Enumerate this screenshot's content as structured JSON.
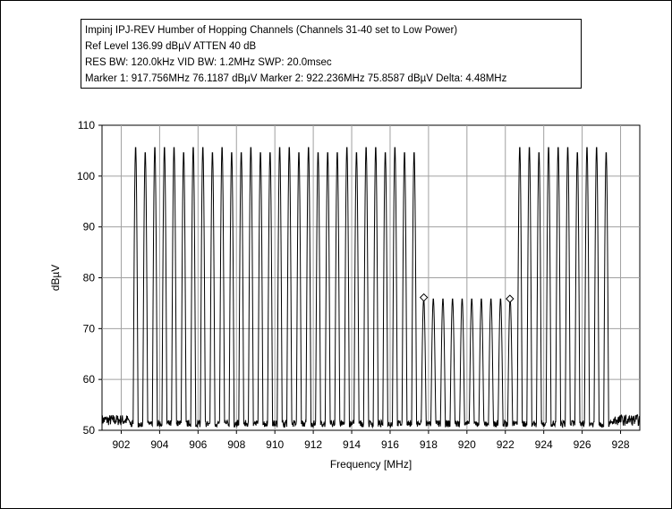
{
  "header": {
    "title": "Impinj IPJ-REV Humber of Hopping Channels (Channels 31-40 set to Low Power)",
    "line2": "Ref Level 136.99 dBµV    ATTEN 40 dB",
    "line3": "RES BW: 120.0kHz  VID BW: 1.2MHz  SWP: 20.0msec",
    "line4": "Marker 1: 917.756MHz  76.1187 dBµV    Marker 2: 922.236MHz  75.8587 dBµV Delta: 4.48MHz"
  },
  "chart_data": {
    "type": "line",
    "xlabel": "Frequency [MHz]",
    "ylabel": "dBµV",
    "xlim": [
      901.0,
      929.0
    ],
    "ylim": [
      50,
      110
    ],
    "x_ticks": [
      902,
      904,
      906,
      908,
      910,
      912,
      914,
      916,
      918,
      920,
      922,
      924,
      926,
      928
    ],
    "y_ticks": [
      50,
      60,
      70,
      80,
      90,
      100,
      110
    ],
    "grid": true,
    "noise_floor_dbuv": 52,
    "band_start_mhz": 902.75,
    "band_end_mhz": 927.25,
    "channel_spacing_mhz": 0.5,
    "channel_count": 50,
    "channel_peaks_dbuv": [
      106,
      105,
      106,
      106,
      106,
      105,
      106,
      106,
      105,
      106,
      105,
      105,
      106,
      105,
      105,
      106,
      106,
      105,
      106,
      105,
      105,
      105,
      106,
      105,
      106,
      106,
      105,
      106,
      105,
      105,
      76,
      76,
      76,
      76,
      76,
      76,
      76,
      76,
      76,
      76,
      106,
      106,
      105,
      106,
      106,
      106,
      105,
      106,
      106,
      105
    ],
    "markers": [
      {
        "name": "Marker 1",
        "x": 917.756,
        "y": 76.1187
      },
      {
        "name": "Marker 2",
        "x": 922.236,
        "y": 75.8587
      }
    ],
    "colors": {
      "trace": "#000000",
      "grid": "#a0a0a0"
    }
  }
}
